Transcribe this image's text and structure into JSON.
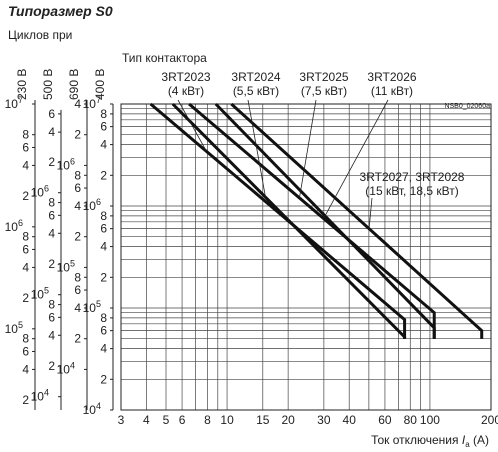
{
  "page": {
    "title": "Типоразмер S0",
    "cycles_label": "Циклов при",
    "contactor_type_label": "Тип контактора",
    "doc_code": "NSB0_02060a"
  },
  "chart_data": {
    "type": "line",
    "xscale": "log",
    "yscale": "log",
    "xlim": [
      3,
      200
    ],
    "ylim": [
      10000,
      10000000
    ],
    "grid": true,
    "xlabel": "Ток отключения I_a (A)",
    "xlabel_parts": {
      "text": "Ток отключения ",
      "sym": "I",
      "sub": "a",
      "unit": " (A)"
    },
    "xticks": [
      3,
      4,
      5,
      6,
      8,
      10,
      15,
      20,
      30,
      40,
      60,
      80,
      100,
      200
    ],
    "xtick_labels": [
      "3",
      "4",
      "5",
      "6",
      "8",
      "10",
      "15",
      "20",
      "30",
      "40",
      "60",
      "80",
      "100",
      "200"
    ],
    "primary_axis": {
      "voltage": "400 В",
      "ticks": [
        {
          "v": 10000000,
          "label": "10",
          "exp": "7"
        },
        {
          "v": 8000000,
          "label": "8"
        },
        {
          "v": 6000000,
          "label": "6"
        },
        {
          "v": 4000000,
          "label": "4"
        },
        {
          "v": 2000000,
          "label": "2"
        },
        {
          "v": 1000000,
          "label": "10",
          "exp": "6"
        },
        {
          "v": 800000,
          "label": "8"
        },
        {
          "v": 600000,
          "label": "6"
        },
        {
          "v": 400000,
          "label": "4"
        },
        {
          "v": 200000,
          "label": "2"
        },
        {
          "v": 100000,
          "label": "10",
          "exp": "5"
        },
        {
          "v": 80000,
          "label": "8"
        },
        {
          "v": 60000,
          "label": "6"
        },
        {
          "v": 40000,
          "label": "4"
        },
        {
          "v": 20000,
          "label": "2"
        },
        {
          "v": 10000,
          "label": "10",
          "exp": "4"
        }
      ]
    },
    "voltage_axes": [
      {
        "voltage": "230 В",
        "ticks": [
          {
            "v": 10000000,
            "label": "10",
            "exp": "7"
          },
          {
            "v": 5000000,
            "label": "8"
          },
          {
            "v": 3750000,
            "label": "6"
          },
          {
            "v": 2500000,
            "label": "4"
          },
          {
            "v": 1250000,
            "label": "2"
          },
          {
            "v": 625000,
            "label": "10",
            "exp": "6"
          },
          {
            "v": 500000,
            "label": "8"
          },
          {
            "v": 375000,
            "label": "6"
          },
          {
            "v": 250000,
            "label": "4"
          },
          {
            "v": 125000,
            "label": "2"
          },
          {
            "v": 62500,
            "label": "10",
            "exp": "5"
          },
          {
            "v": 50000,
            "label": "8"
          },
          {
            "v": 37500,
            "label": "6"
          },
          {
            "v": 25000,
            "label": "4"
          },
          {
            "v": 12500,
            "label": "2"
          }
        ]
      },
      {
        "voltage": "500 В",
        "ticks": [
          {
            "v": 8000000,
            "label": "6"
          },
          {
            "v": 5300000,
            "label": "4"
          },
          {
            "v": 2700000,
            "label": "2"
          },
          {
            "v": 1350000,
            "label": "10",
            "exp": "6"
          },
          {
            "v": 1080000,
            "label": "8"
          },
          {
            "v": 810000,
            "label": "6"
          },
          {
            "v": 540000,
            "label": "4"
          },
          {
            "v": 270000,
            "label": "2"
          },
          {
            "v": 135000,
            "label": "10",
            "exp": "5"
          },
          {
            "v": 108000,
            "label": "8"
          },
          {
            "v": 81000,
            "label": "6"
          },
          {
            "v": 54000,
            "label": "4"
          },
          {
            "v": 27000,
            "label": "2"
          },
          {
            "v": 13500,
            "label": "10",
            "exp": "4"
          }
        ]
      },
      {
        "voltage": "690 В",
        "ticks": [
          {
            "v": 10000000,
            "label": "4"
          },
          {
            "v": 5000000,
            "label": "2"
          },
          {
            "v": 2500000,
            "label": "10",
            "exp": "6"
          },
          {
            "v": 2000000,
            "label": "8"
          },
          {
            "v": 1500000,
            "label": "6"
          },
          {
            "v": 1000000,
            "label": "4"
          },
          {
            "v": 500000,
            "label": "2"
          },
          {
            "v": 250000,
            "label": "10",
            "exp": "5"
          },
          {
            "v": 200000,
            "label": "8"
          },
          {
            "v": 150000,
            "label": "6"
          },
          {
            "v": 100000,
            "label": "4"
          },
          {
            "v": 50000,
            "label": "2"
          },
          {
            "v": 25000,
            "label": "10",
            "exp": "4"
          }
        ]
      }
    ],
    "series": [
      {
        "name": "3RT2023",
        "rating": "(4 кВт)",
        "x": [
          4.2,
          75.0,
          75.0
        ],
        "y": [
          10000000,
          77000,
          50000
        ]
      },
      {
        "name": "3RT2024",
        "rating": "(5,5 кВт)",
        "x": [
          5.4,
          75.0,
          75.0
        ],
        "y": [
          10000000,
          52000,
          50000
        ]
      },
      {
        "name": "3RT2025",
        "rating": "(7,5 кВт)",
        "x": [
          6.5,
          105.0,
          105.0
        ],
        "y": [
          10000000,
          90000,
          50000
        ]
      },
      {
        "name": "3RT2026",
        "rating": "(11 кВт)",
        "x": [
          8.8,
          105.0,
          105.0
        ],
        "y": [
          10000000,
          64000,
          50000
        ]
      },
      {
        "name": "3RT2027, 3RT2028",
        "rating": "(15 кВт, 18,5 кВт)",
        "x": [
          10.5,
          180.0,
          180.0
        ],
        "y": [
          10000000,
          60000,
          50000
        ]
      }
    ]
  }
}
